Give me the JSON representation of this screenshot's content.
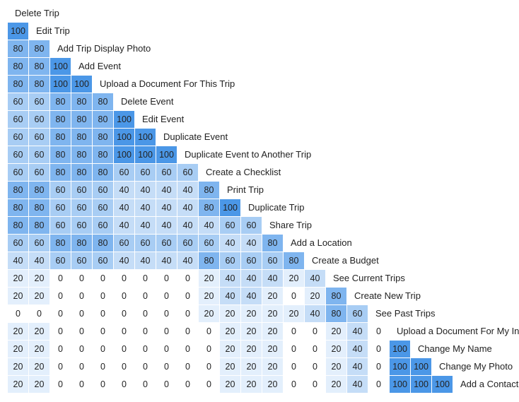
{
  "chart_data": {
    "type": "heatmap",
    "shape": "lower-triangular",
    "rows": [
      {
        "label": "Delete Trip",
        "values": []
      },
      {
        "label": "Edit Trip",
        "values": [
          100
        ]
      },
      {
        "label": "Add Trip Display Photo",
        "values": [
          80,
          80
        ]
      },
      {
        "label": "Add Event",
        "values": [
          80,
          80,
          100
        ]
      },
      {
        "label": "Upload a Document For This Trip",
        "values": [
          80,
          80,
          100,
          100
        ]
      },
      {
        "label": "Delete Event",
        "values": [
          60,
          60,
          80,
          80,
          80
        ]
      },
      {
        "label": "Edit Event",
        "values": [
          60,
          60,
          80,
          80,
          80,
          100
        ]
      },
      {
        "label": "Duplicate Event",
        "values": [
          60,
          60,
          80,
          80,
          80,
          100,
          100
        ]
      },
      {
        "label": "Duplicate Event to Another Trip",
        "values": [
          60,
          60,
          80,
          80,
          80,
          100,
          100,
          100
        ]
      },
      {
        "label": "Create a Checklist",
        "values": [
          60,
          60,
          80,
          80,
          80,
          60,
          60,
          60,
          60
        ]
      },
      {
        "label": "Print Trip",
        "values": [
          80,
          80,
          60,
          60,
          60,
          40,
          40,
          40,
          40,
          80
        ]
      },
      {
        "label": "Duplicate Trip",
        "values": [
          80,
          80,
          60,
          60,
          60,
          40,
          40,
          40,
          40,
          80,
          100
        ]
      },
      {
        "label": "Share Trip",
        "values": [
          80,
          80,
          60,
          60,
          60,
          40,
          40,
          40,
          40,
          40,
          60,
          60
        ]
      },
      {
        "label": "Add a Location",
        "values": [
          60,
          60,
          80,
          80,
          80,
          60,
          60,
          60,
          60,
          60,
          40,
          40,
          80
        ]
      },
      {
        "label": "Create a Budget",
        "values": [
          40,
          40,
          60,
          60,
          60,
          40,
          40,
          40,
          40,
          80,
          60,
          60,
          60,
          80
        ]
      },
      {
        "label": "See Current Trips",
        "values": [
          20,
          20,
          0,
          0,
          0,
          0,
          0,
          0,
          0,
          20,
          40,
          40,
          40,
          20,
          40
        ]
      },
      {
        "label": "Create New Trip",
        "values": [
          20,
          20,
          0,
          0,
          0,
          0,
          0,
          0,
          0,
          20,
          40,
          40,
          20,
          0,
          20,
          80
        ]
      },
      {
        "label": "See Past Trips",
        "values": [
          0,
          0,
          0,
          0,
          0,
          0,
          0,
          0,
          0,
          20,
          20,
          20,
          20,
          20,
          40,
          80,
          60
        ]
      },
      {
        "label": "Upload a Document For My Info",
        "values": [
          20,
          20,
          0,
          0,
          0,
          0,
          0,
          0,
          0,
          0,
          20,
          20,
          20,
          0,
          0,
          20,
          40,
          0
        ]
      },
      {
        "label": "Change My Name",
        "values": [
          20,
          20,
          0,
          0,
          0,
          0,
          0,
          0,
          0,
          0,
          20,
          20,
          20,
          0,
          0,
          20,
          40,
          0,
          100
        ]
      },
      {
        "label": "Change My Photo",
        "values": [
          20,
          20,
          0,
          0,
          0,
          0,
          0,
          0,
          0,
          0,
          20,
          20,
          20,
          0,
          0,
          20,
          40,
          0,
          100,
          100
        ]
      },
      {
        "label": "Add a Contact",
        "values": [
          20,
          20,
          0,
          0,
          0,
          0,
          0,
          0,
          0,
          0,
          20,
          20,
          20,
          0,
          0,
          20,
          40,
          0,
          100,
          100,
          100
        ]
      }
    ],
    "value_range": [
      0,
      100
    ],
    "colors": {
      "0": "#ffffff",
      "20": "#e3effc",
      "40": "#c5ddf7",
      "60": "#a8cdf4",
      "80": "#7fb5ef",
      "100": "#4b97e7"
    }
  }
}
